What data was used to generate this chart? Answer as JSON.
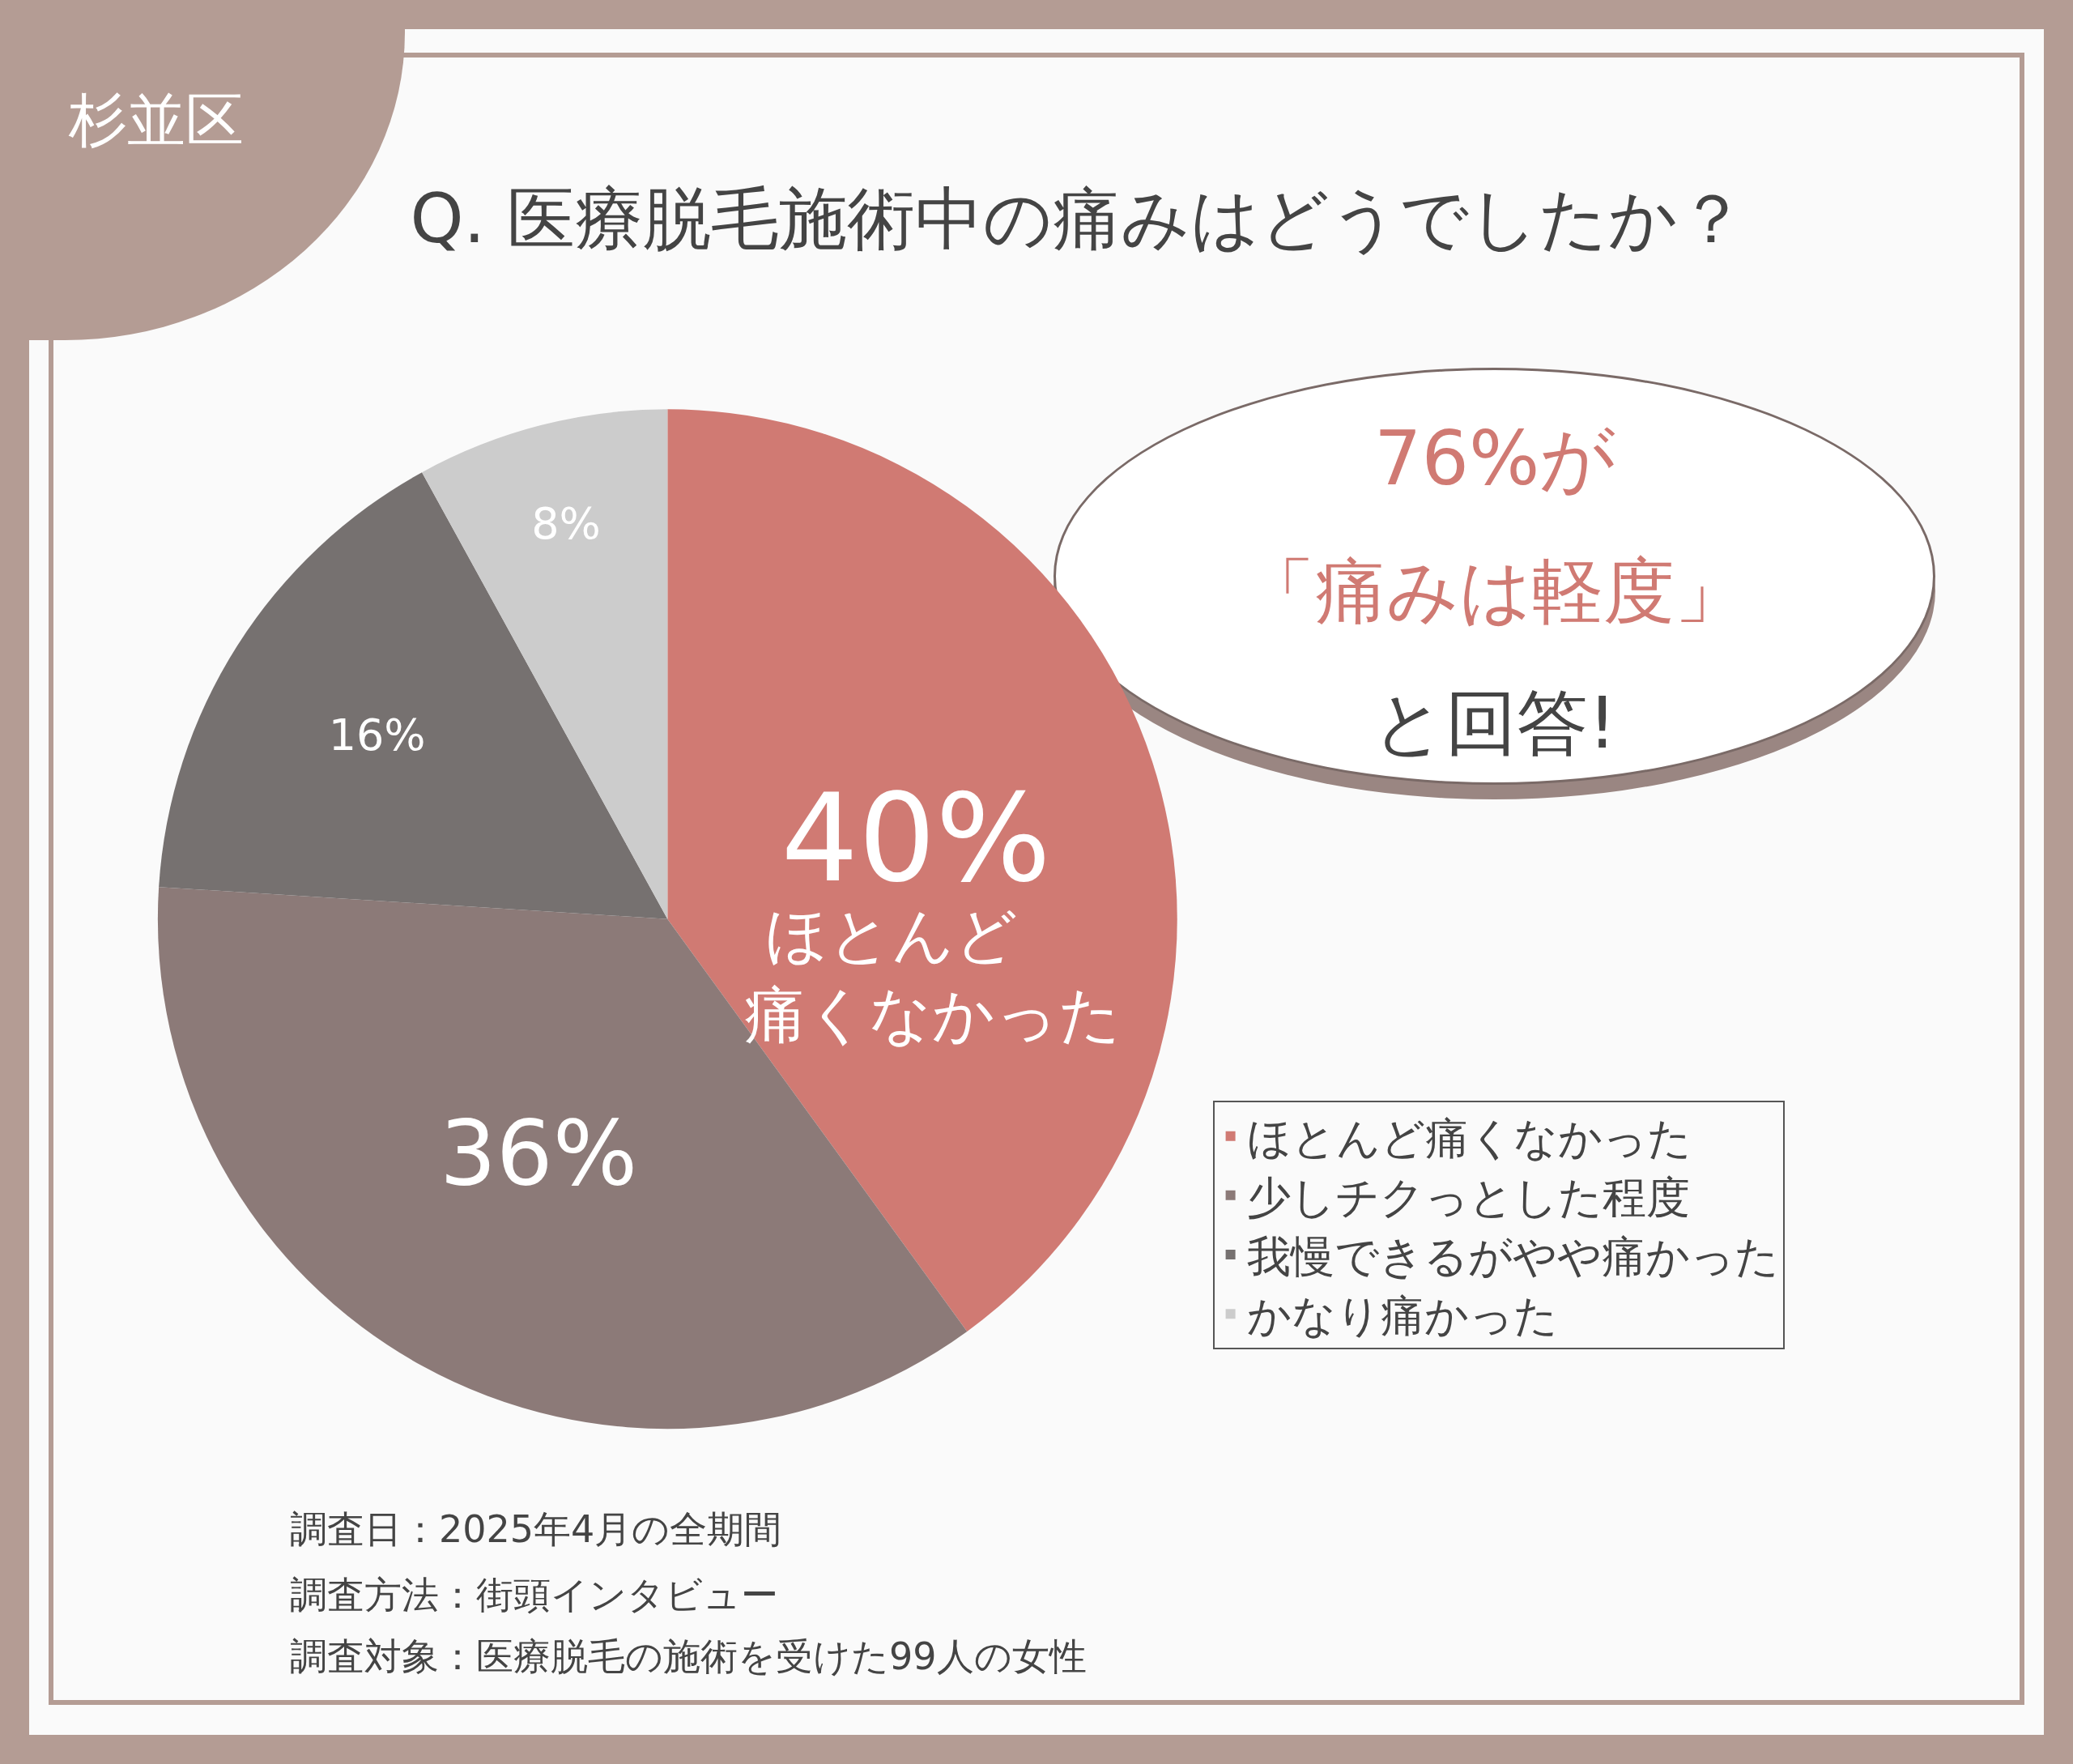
{
  "chart_data": {
    "type": "pie",
    "title": "Q. 医療脱毛施術中の痛みはどうでしたか？",
    "categories": [
      "ほとんど痛くなかった",
      "少しチクっとした程度",
      "我慢できるがやや痛かった",
      "かなり痛かった"
    ],
    "values": [
      40,
      36,
      16,
      8
    ],
    "value_labels": [
      "40%",
      "36%",
      "16%",
      "8%"
    ],
    "colors": [
      "#d07a73",
      "#8c7a78",
      "#767170",
      "#cccccc"
    ],
    "legend": "right",
    "annotations": [
      "杉並区",
      "76%が",
      "「痛みは軽度」",
      "と回答!",
      "ほとんど",
      "痛くなかった",
      "調査日：2025年4月の全期間",
      "調査方法：街頭インタビュー",
      "調査対象：医療脱毛の施術を受けた99人の女性"
    ]
  }
}
